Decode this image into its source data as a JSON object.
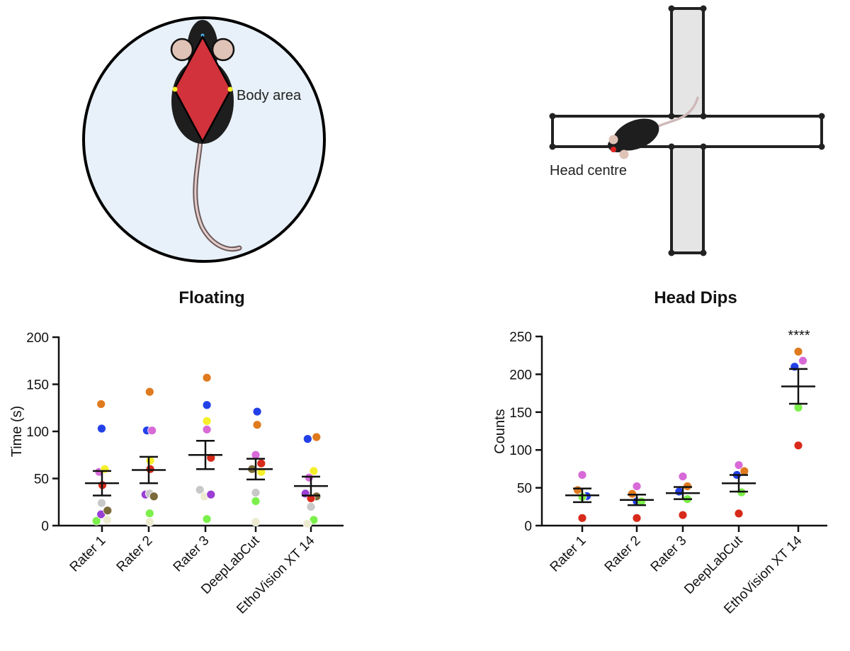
{
  "illustrations": {
    "left_label": "Body area",
    "right_label": "Head centre"
  },
  "chart_data": [
    {
      "type": "scatter",
      "title": "Floating",
      "xlabel": "",
      "ylabel": "Time (s)",
      "ylim": [
        0,
        200
      ],
      "yticks": [
        0,
        50,
        100,
        150,
        200
      ],
      "categories": [
        "Rater 1",
        "Rater 2",
        "Rater 3",
        "DeepLabCut",
        "EthoVision XT 14"
      ],
      "means": [
        45,
        59,
        75,
        60,
        42
      ],
      "sem": [
        13,
        14,
        15,
        11,
        10
      ],
      "annotation": "",
      "points": [
        [
          {
            "x": -0.3,
            "y": 5,
            "color": "#7cf04a"
          },
          {
            "x": -0.05,
            "y": 129,
            "color": "#e07a1e"
          },
          {
            "x": -0.02,
            "y": 103,
            "color": "#2340e8"
          },
          {
            "x": -0.15,
            "y": 57,
            "color": "#d86ad8"
          },
          {
            "x": 0.15,
            "y": 60,
            "color": "#f5ef2a"
          },
          {
            "x": 0.02,
            "y": 43,
            "color": "#d82a1a"
          },
          {
            "x": -0.02,
            "y": 24,
            "color": "#c8c8c8"
          },
          {
            "x": -0.05,
            "y": 12,
            "color": "#9a3ed4"
          },
          {
            "x": 0.3,
            "y": 16,
            "color": "#7a6a3a"
          },
          {
            "x": 0.28,
            "y": 6,
            "color": "#ecebd0"
          }
        ],
        [
          {
            "x": 0.05,
            "y": 142,
            "color": "#e07a1e"
          },
          {
            "x": -0.1,
            "y": 101,
            "color": "#2340e8"
          },
          {
            "x": 0.18,
            "y": 101,
            "color": "#d86ad8"
          },
          {
            "x": 0.08,
            "y": 69,
            "color": "#f5ef2a"
          },
          {
            "x": 0.08,
            "y": 60,
            "color": "#d82a1a"
          },
          {
            "x": -0.18,
            "y": 33,
            "color": "#9a3ed4"
          },
          {
            "x": 0.05,
            "y": 34,
            "color": "#c8c8c8"
          },
          {
            "x": 0.28,
            "y": 31,
            "color": "#7a6a3a"
          },
          {
            "x": 0.05,
            "y": 13,
            "color": "#7cf04a"
          },
          {
            "x": 0.05,
            "y": 4,
            "color": "#ecebd0"
          }
        ],
        [
          {
            "x": 0.08,
            "y": 157,
            "color": "#e07a1e"
          },
          {
            "x": 0.08,
            "y": 128,
            "color": "#2340e8"
          },
          {
            "x": 0.08,
            "y": 111,
            "color": "#f5ef2a"
          },
          {
            "x": 0.08,
            "y": 102,
            "color": "#d86ad8"
          },
          {
            "x": 0.3,
            "y": 72,
            "color": "#d82a1a"
          },
          {
            "x": -0.3,
            "y": 38,
            "color": "#c8c8c8"
          },
          {
            "x": -0.05,
            "y": 31,
            "color": "#ecebd0"
          },
          {
            "x": 0.3,
            "y": 33,
            "color": "#9a3ed4"
          },
          {
            "x": 0.08,
            "y": 7,
            "color": "#7cf04a"
          }
        ],
        [
          {
            "x": 0.08,
            "y": 121,
            "color": "#2340e8"
          },
          {
            "x": 0.08,
            "y": 107,
            "color": "#e07a1e"
          },
          {
            "x": 0.0,
            "y": 75,
            "color": "#d86ad8"
          },
          {
            "x": 0.3,
            "y": 66,
            "color": "#d82a1a"
          },
          {
            "x": -0.2,
            "y": 60,
            "color": "#7a6a3a"
          },
          {
            "x": 0.3,
            "y": 57,
            "color": "#f5ef2a"
          },
          {
            "x": 0.0,
            "y": 35,
            "color": "#c8c8c8"
          },
          {
            "x": 0.0,
            "y": 26,
            "color": "#7cf04a"
          },
          {
            "x": 0.0,
            "y": 4,
            "color": "#ecebd0"
          }
        ],
        [
          {
            "x": -0.18,
            "y": 92,
            "color": "#2340e8"
          },
          {
            "x": 0.3,
            "y": 94,
            "color": "#e07a1e"
          },
          {
            "x": 0.15,
            "y": 58,
            "color": "#f5ef2a"
          },
          {
            "x": -0.1,
            "y": 51,
            "color": "#d86ad8"
          },
          {
            "x": -0.3,
            "y": 34,
            "color": "#9a3ed4"
          },
          {
            "x": 0.3,
            "y": 31,
            "color": "#7a6a3a"
          },
          {
            "x": 0.0,
            "y": 29,
            "color": "#d82a1a"
          },
          {
            "x": 0.0,
            "y": 20,
            "color": "#c8c8c8"
          },
          {
            "x": 0.15,
            "y": 6,
            "color": "#7cf04a"
          },
          {
            "x": -0.2,
            "y": 2,
            "color": "#ecebd0"
          }
        ]
      ]
    },
    {
      "type": "scatter",
      "title": "Head Dips",
      "xlabel": "",
      "ylabel": "Counts",
      "ylim": [
        0,
        250
      ],
      "yticks": [
        0,
        50,
        100,
        150,
        200,
        250
      ],
      "categories": [
        "Rater 1",
        "Rater 2",
        "Rater 3",
        "DeepLabCut",
        "EthoVision XT 14"
      ],
      "means": [
        40,
        34,
        43,
        56,
        184
      ],
      "sem": [
        9,
        7,
        8,
        11,
        23
      ],
      "annotation": "****",
      "points": [
        [
          {
            "x": -0.25,
            "y": 47,
            "color": "#e07a1e"
          },
          {
            "x": 0.0,
            "y": 67,
            "color": "#d86ad8"
          },
          {
            "x": 0.25,
            "y": 39,
            "color": "#2340e8"
          },
          {
            "x": 0.0,
            "y": 38,
            "color": "#7cf04a"
          },
          {
            "x": 0.0,
            "y": 10,
            "color": "#d82a1a"
          }
        ],
        [
          {
            "x": -0.25,
            "y": 42,
            "color": "#e07a1e"
          },
          {
            "x": 0.0,
            "y": 52,
            "color": "#d86ad8"
          },
          {
            "x": 0.0,
            "y": 32,
            "color": "#2340e8"
          },
          {
            "x": 0.25,
            "y": 32,
            "color": "#7cf04a"
          },
          {
            "x": 0.0,
            "y": 10,
            "color": "#d82a1a"
          }
        ],
        [
          {
            "x": -0.2,
            "y": 45,
            "color": "#2340e8"
          },
          {
            "x": 0.0,
            "y": 65,
            "color": "#d86ad8"
          },
          {
            "x": 0.25,
            "y": 52,
            "color": "#e07a1e"
          },
          {
            "x": 0.25,
            "y": 35,
            "color": "#7cf04a"
          },
          {
            "x": 0.0,
            "y": 14,
            "color": "#d82a1a"
          }
        ],
        [
          {
            "x": 0.0,
            "y": 80,
            "color": "#d86ad8"
          },
          {
            "x": -0.1,
            "y": 67,
            "color": "#2340e8"
          },
          {
            "x": 0.3,
            "y": 72,
            "color": "#e07a1e"
          },
          {
            "x": 0.15,
            "y": 44,
            "color": "#7cf04a"
          },
          {
            "x": 0.0,
            "y": 16,
            "color": "#d82a1a"
          }
        ],
        [
          {
            "x": 0.0,
            "y": 230,
            "color": "#e07a1e"
          },
          {
            "x": 0.25,
            "y": 218,
            "color": "#d86ad8"
          },
          {
            "x": -0.2,
            "y": 210,
            "color": "#2340e8"
          },
          {
            "x": 0.0,
            "y": 156,
            "color": "#7cf04a"
          },
          {
            "x": 0.0,
            "y": 106,
            "color": "#d82a1a"
          }
        ]
      ]
    }
  ]
}
